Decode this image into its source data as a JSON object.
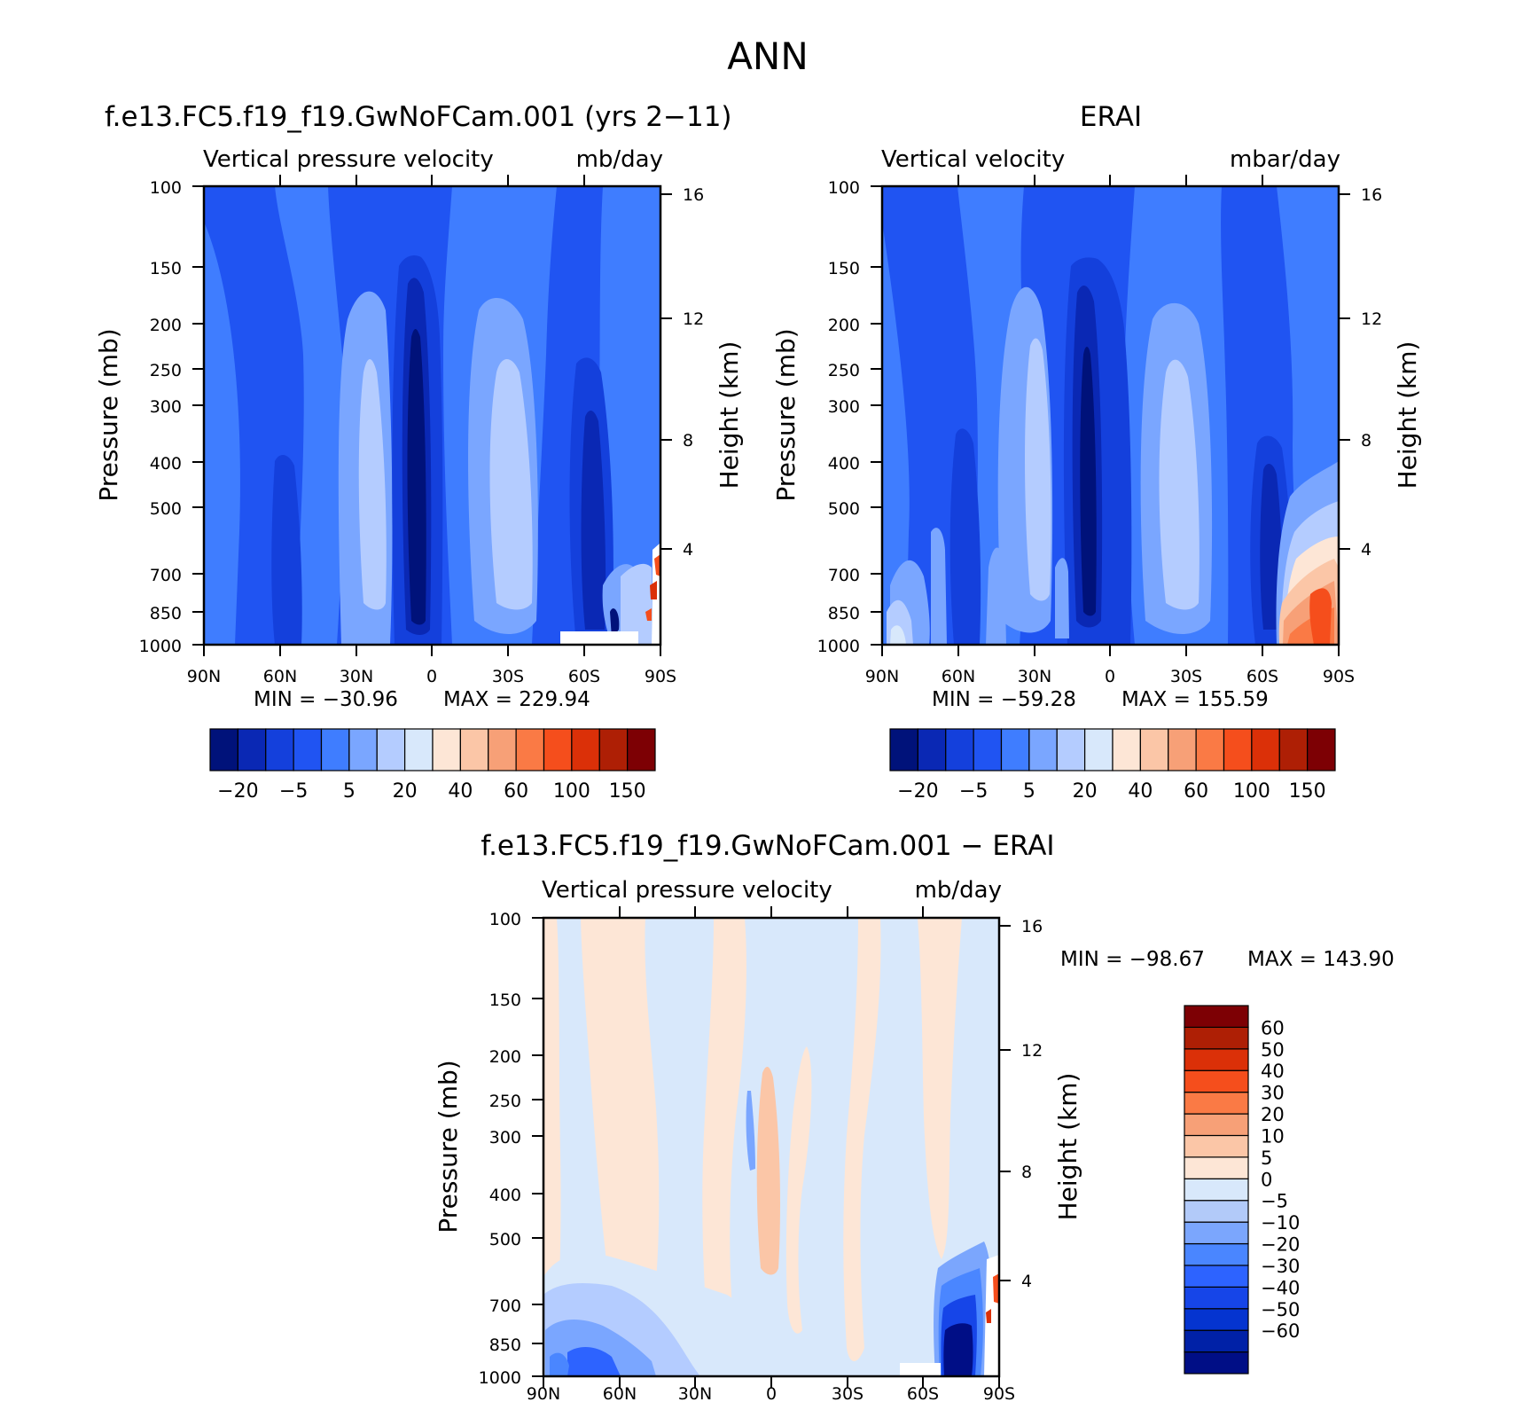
{
  "main_title": "ANN",
  "colors": {
    "abs_levels": [
      "#00127a",
      "#0a28b4",
      "#1440dc",
      "#2054f2",
      "#3f7dff",
      "#7aa6ff",
      "#b4ccff",
      "#d8e8fb",
      "#fde6d6",
      "#fbc6a7",
      "#f7a077",
      "#fa7a45",
      "#f54e1c",
      "#db3008",
      "#ae1f05",
      "#7d0004"
    ],
    "diff_levels": [
      "#000e86",
      "#0021a7",
      "#0534d0",
      "#1645e8",
      "#2d63ff",
      "#4a86ff",
      "#7ba6fd",
      "#b2caf9",
      "#d8e8fb",
      "#fde6d6",
      "#fbc6a7",
      "#f7a077",
      "#fa7a45",
      "#f54e1c",
      "#db3008",
      "#ae1f05",
      "#7d0004"
    ]
  },
  "chart_data": [
    {
      "type": "contour",
      "title": "f.e13.FC5.f19_f19.GwNoFCam.001 (yrs 2−11)",
      "left_subtitle": "Vertical pressure velocity",
      "right_subtitle": "mb/day",
      "ylabel": "Pressure (mb)",
      "ylabel2": "Height (km)",
      "x_ticks": [
        "90N",
        "60N",
        "30N",
        "0",
        "30S",
        "60S",
        "90S"
      ],
      "y_ticks": [
        "100",
        "150",
        "200",
        "250",
        "300",
        "400",
        "500",
        "700",
        "850",
        "1000"
      ],
      "y2_ticks": [
        "16",
        "12",
        "8",
        "4"
      ],
      "ylim": [
        1000,
        100
      ],
      "y_scale": "log",
      "min_label": "MIN =  −30.96",
      "max_label": "MAX =  229.94",
      "colorbar": {
        "orientation": "horizontal",
        "labels": [
          "−20",
          "−5",
          "5",
          "20",
          "40",
          "60",
          "100",
          "150"
        ]
      }
    },
    {
      "type": "contour",
      "title": "ERAI",
      "left_subtitle": "Vertical velocity",
      "right_subtitle": "mbar/day",
      "ylabel": "Pressure (mb)",
      "ylabel2": "Height (km)",
      "x_ticks": [
        "90N",
        "60N",
        "30N",
        "0",
        "30S",
        "60S",
        "90S"
      ],
      "y_ticks": [
        "100",
        "150",
        "200",
        "250",
        "300",
        "400",
        "500",
        "700",
        "850",
        "1000"
      ],
      "y2_ticks": [
        "16",
        "12",
        "8",
        "4"
      ],
      "ylim": [
        1000,
        100
      ],
      "y_scale": "log",
      "min_label": "MIN =  −59.28",
      "max_label": "MAX =  155.59",
      "colorbar": {
        "orientation": "horizontal",
        "labels": [
          "−20",
          "−5",
          "5",
          "20",
          "40",
          "60",
          "100",
          "150"
        ]
      }
    },
    {
      "type": "contour",
      "title": "f.e13.FC5.f19_f19.GwNoFCam.001 − ERAI",
      "left_subtitle": "Vertical pressure velocity",
      "right_subtitle": "mb/day",
      "ylabel": "Pressure (mb)",
      "ylabel2": "Height (km)",
      "x_ticks": [
        "90N",
        "60N",
        "30N",
        "0",
        "30S",
        "60S",
        "90S"
      ],
      "y_ticks": [
        "100",
        "150",
        "200",
        "250",
        "300",
        "400",
        "500",
        "700",
        "850",
        "1000"
      ],
      "y2_ticks": [
        "16",
        "12",
        "8",
        "4"
      ],
      "ylim": [
        1000,
        100
      ],
      "y_scale": "log",
      "min_label": "MIN =  −98.67",
      "max_label": "MAX =  143.90",
      "colorbar": {
        "orientation": "vertical",
        "labels": [
          "60",
          "50",
          "40",
          "30",
          "20",
          "10",
          "5",
          "0",
          "−5",
          "−10",
          "−20",
          "−30",
          "−40",
          "−50",
          "−60"
        ]
      }
    }
  ]
}
